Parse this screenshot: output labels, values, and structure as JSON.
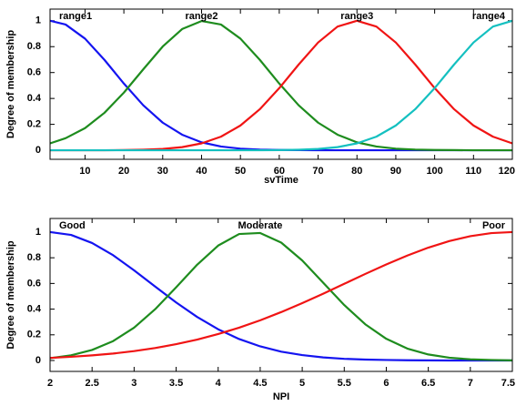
{
  "chart_data": [
    {
      "type": "line",
      "xlabel": "svTime",
      "ylabel": "Degree of membership",
      "x": [
        1,
        5,
        10,
        15,
        20,
        25,
        30,
        35,
        40,
        45,
        50,
        55,
        60,
        65,
        70,
        75,
        80,
        85,
        90,
        95,
        100,
        105,
        110,
        115,
        120
      ],
      "series": [
        {
          "name": "range1",
          "color": "#1414f0",
          "values": [
            1,
            0.971,
            0.862,
            0.698,
            0.515,
            0.347,
            0.213,
            0.12,
            0.061,
            0.029,
            0.012,
            0.005,
            0.002,
            0.001,
            0,
            0,
            0,
            0,
            0,
            0,
            0,
            0,
            0,
            0,
            0
          ]
        },
        {
          "name": "range2",
          "color": "#1e8c1e",
          "values": [
            0.053,
            0.093,
            0.171,
            0.289,
            0.445,
            0.625,
            0.801,
            0.936,
            0.998,
            0.971,
            0.862,
            0.698,
            0.515,
            0.347,
            0.213,
            0.12,
            0.061,
            0.029,
            0.012,
            0.005,
            0.002,
            0.001,
            0,
            0,
            0
          ]
        },
        {
          "name": "range3",
          "color": "#f01414",
          "values": [
            0,
            0,
            0,
            0,
            0.001,
            0.004,
            0.01,
            0.024,
            0.053,
            0.105,
            0.191,
            0.317,
            0.48,
            0.662,
            0.832,
            0.955,
            1,
            0.955,
            0.832,
            0.662,
            0.48,
            0.317,
            0.191,
            0.105,
            0.053
          ]
        },
        {
          "name": "range4",
          "color": "#14c0c0",
          "values": [
            0,
            0,
            0,
            0,
            0,
            0,
            0,
            0,
            0,
            0,
            0,
            0,
            0.001,
            0.004,
            0.01,
            0.024,
            0.053,
            0.105,
            0.191,
            0.317,
            0.48,
            0.662,
            0.832,
            0.955,
            1
          ]
        }
      ],
      "xlim": [
        1,
        120
      ],
      "ylim": [
        -0.07,
        1.09
      ],
      "xticks": [
        10,
        20,
        30,
        40,
        50,
        60,
        70,
        80,
        90,
        100,
        110,
        120
      ],
      "yticks": [
        0,
        0.2,
        0.4,
        0.6,
        0.8,
        1
      ],
      "grid": false
    },
    {
      "type": "line",
      "xlabel": "NPI",
      "ylabel": "Degree of membership",
      "x": [
        2,
        2.25,
        2.5,
        2.75,
        3,
        3.25,
        3.5,
        3.75,
        4,
        4.25,
        4.5,
        4.75,
        5,
        5.25,
        5.5,
        5.75,
        6,
        6.25,
        6.5,
        6.75,
        7,
        7.25,
        7.5
      ],
      "series": [
        {
          "name": "Good",
          "color": "#1414f0",
          "values": [
            1,
            0.978,
            0.915,
            0.82,
            0.702,
            0.576,
            0.452,
            0.339,
            0.243,
            0.167,
            0.11,
            0.069,
            0.042,
            0.024,
            0.013,
            0.007,
            0.004,
            0.002,
            0.001,
            0,
            0,
            0,
            0
          ]
        },
        {
          "name": "Moderate",
          "color": "#1e8c1e",
          "values": [
            0.018,
            0.04,
            0.082,
            0.151,
            0.256,
            0.399,
            0.57,
            0.746,
            0.895,
            0.985,
            0.993,
            0.918,
            0.779,
            0.605,
            0.432,
            0.282,
            0.169,
            0.093,
            0.047,
            0.022,
            0.009,
            0.004,
            0.001
          ]
        },
        {
          "name": "Poor",
          "color": "#f01414",
          "values": [
            0.02,
            0.029,
            0.04,
            0.054,
            0.073,
            0.097,
            0.127,
            0.163,
            0.206,
            0.256,
            0.313,
            0.377,
            0.447,
            0.52,
            0.597,
            0.674,
            0.748,
            0.817,
            0.879,
            0.93,
            0.968,
            0.992,
            1
          ]
        }
      ],
      "xlim": [
        2,
        7.5
      ],
      "ylim": [
        -0.085,
        1.106
      ],
      "xticks": [
        2,
        2.5,
        3,
        3.5,
        4,
        4.5,
        5,
        5.5,
        6,
        6.5,
        7,
        7.5
      ],
      "yticks": [
        0,
        0.2,
        0.4,
        0.6,
        0.8,
        1
      ],
      "grid": false
    }
  ]
}
